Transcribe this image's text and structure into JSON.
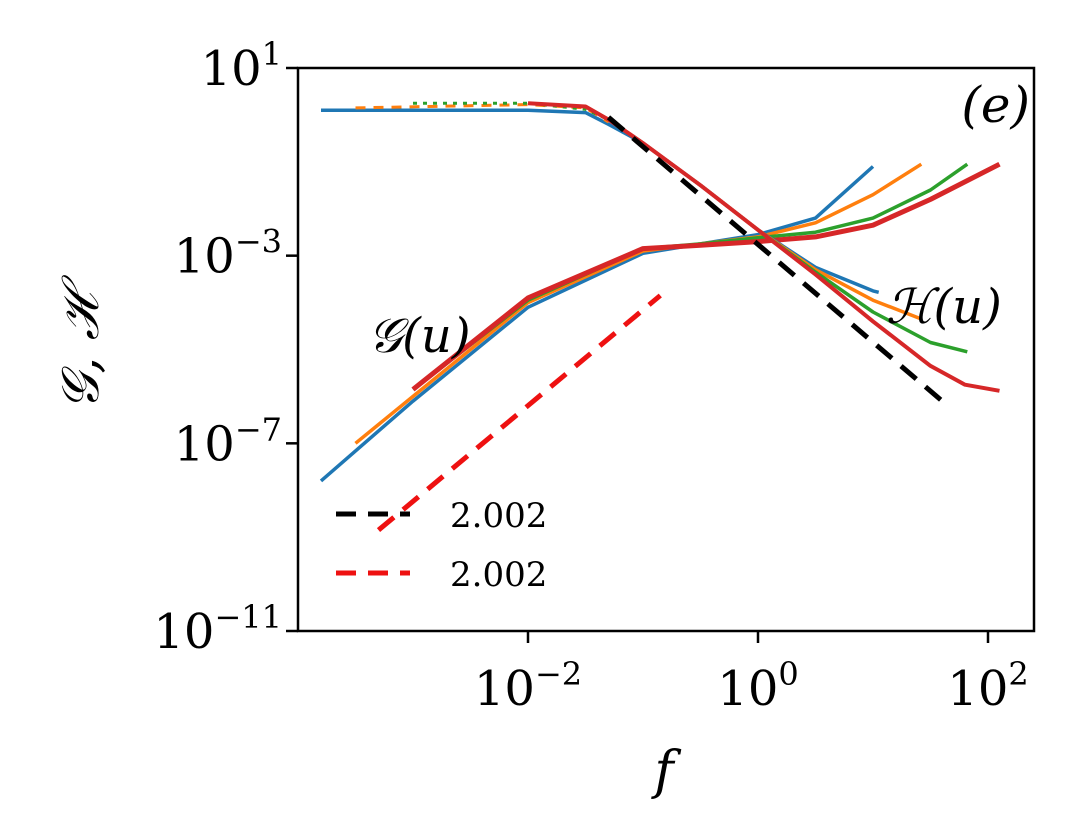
{
  "chart_data": {
    "type": "line",
    "panel_label": "(e)",
    "xlabel": "f",
    "ylabel": "𝒢, ℋ",
    "xscale": "log",
    "yscale": "log",
    "xlim_log10": [
      -4.0,
      2.4
    ],
    "ylim_log10": [
      -11,
      1
    ],
    "x_ticks": [
      {
        "base": "10",
        "exp": "−2",
        "log10": -2
      },
      {
        "base": "10",
        "exp": "0",
        "log10": 0
      },
      {
        "base": "10",
        "exp": "2",
        "log10": 2
      }
    ],
    "y_ticks": [
      {
        "base": "10",
        "exp": "1",
        "log10": 1
      },
      {
        "base": "10",
        "exp": "−3",
        "log10": -3
      },
      {
        "base": "10",
        "exp": "−7",
        "log10": -7
      },
      {
        "base": "10",
        "exp": "−11",
        "log10": -11
      }
    ],
    "annotations": {
      "g_label": "𝒢(u)",
      "h_label": "ℋ(u)"
    },
    "legend": {
      "position": "lower-left",
      "entries": [
        {
          "label": "2.002",
          "color": "#000000",
          "style": "dashed"
        },
        {
          "label": "2.002",
          "color": "#ee1111",
          "style": "dashed"
        }
      ]
    },
    "series": [
      {
        "name": "G blue",
        "color": "#1f77b4",
        "width": 3.5,
        "points": [
          [
            -3.8,
            -7.8
          ],
          [
            -3.0,
            -6.1
          ],
          [
            -2.0,
            -4.1
          ],
          [
            -1.0,
            -2.95
          ],
          [
            -0.5,
            -2.75
          ],
          [
            0.0,
            -2.55
          ],
          [
            0.5,
            -2.2
          ],
          [
            1.0,
            -1.1
          ]
        ]
      },
      {
        "name": "G orange",
        "color": "#ff7f0e",
        "width": 3.5,
        "points": [
          [
            -3.5,
            -7.0
          ],
          [
            -3.0,
            -6.0
          ],
          [
            -2.0,
            -4.0
          ],
          [
            -1.0,
            -2.9
          ],
          [
            -0.5,
            -2.75
          ],
          [
            0.0,
            -2.6
          ],
          [
            0.5,
            -2.3
          ],
          [
            1.0,
            -1.7
          ],
          [
            1.42,
            -1.05
          ]
        ]
      },
      {
        "name": "G green",
        "color": "#2ca02c",
        "width": 3.5,
        "points": [
          [
            -3.0,
            -5.85
          ],
          [
            -2.0,
            -3.95
          ],
          [
            -1.0,
            -2.85
          ],
          [
            -0.5,
            -2.75
          ],
          [
            0.0,
            -2.62
          ],
          [
            0.5,
            -2.5
          ],
          [
            1.0,
            -2.2
          ],
          [
            1.5,
            -1.6
          ],
          [
            1.82,
            -1.05
          ]
        ]
      },
      {
        "name": "G red",
        "color": "#d62728",
        "width": 5,
        "points": [
          [
            -3.0,
            -5.85
          ],
          [
            -2.0,
            -3.9
          ],
          [
            -1.0,
            -2.85
          ],
          [
            -0.5,
            -2.78
          ],
          [
            0.0,
            -2.7
          ],
          [
            0.5,
            -2.6
          ],
          [
            1.0,
            -2.35
          ],
          [
            1.5,
            -1.8
          ],
          [
            2.1,
            -1.05
          ]
        ]
      },
      {
        "name": "H blue",
        "color": "#1f77b4",
        "width": 3.5,
        "points": [
          [
            -3.8,
            0.1
          ],
          [
            -2.0,
            0.1
          ],
          [
            -1.5,
            0.05
          ],
          [
            -1.3,
            -0.2
          ],
          [
            -1.0,
            -0.6
          ],
          [
            -0.5,
            -1.5
          ],
          [
            0.0,
            -2.45
          ],
          [
            0.5,
            -3.25
          ],
          [
            1.0,
            -3.75
          ],
          [
            1.05,
            -3.78
          ]
        ]
      },
      {
        "name": "H orange dashed",
        "color": "#ff7f0e",
        "width": 3,
        "dash": "10,8",
        "points": [
          [
            -3.5,
            0.15
          ],
          [
            -2.0,
            0.22
          ],
          [
            -1.5,
            0.15
          ],
          [
            -1.3,
            -0.15
          ]
        ]
      },
      {
        "name": "H green dotted",
        "color": "#2ca02c",
        "width": 3,
        "dash": "4,6",
        "points": [
          [
            -3.0,
            0.25
          ],
          [
            -2.0,
            0.25
          ],
          [
            -1.5,
            0.12
          ],
          [
            -1.3,
            -0.1
          ]
        ]
      },
      {
        "name": "H orange",
        "color": "#ff7f0e",
        "width": 3.5,
        "points": [
          [
            -1.5,
            0.18
          ],
          [
            -1.3,
            -0.1
          ],
          [
            -1.0,
            -0.6
          ],
          [
            -0.5,
            -1.5
          ],
          [
            0.0,
            -2.45
          ],
          [
            0.5,
            -3.3
          ],
          [
            1.0,
            -3.95
          ],
          [
            1.42,
            -4.35
          ]
        ]
      },
      {
        "name": "H green",
        "color": "#2ca02c",
        "width": 3.5,
        "points": [
          [
            -1.5,
            0.18
          ],
          [
            -1.3,
            -0.1
          ],
          [
            -1.0,
            -0.6
          ],
          [
            -0.5,
            -1.5
          ],
          [
            0.0,
            -2.45
          ],
          [
            0.5,
            -3.35
          ],
          [
            1.0,
            -4.2
          ],
          [
            1.5,
            -4.85
          ],
          [
            1.82,
            -5.05
          ]
        ]
      },
      {
        "name": "H red",
        "color": "#d62728",
        "width": 4,
        "points": [
          [
            -2.0,
            0.25
          ],
          [
            -1.5,
            0.18
          ],
          [
            -1.3,
            -0.1
          ],
          [
            -1.0,
            -0.6
          ],
          [
            -0.5,
            -1.5
          ],
          [
            0.0,
            -2.45
          ],
          [
            0.5,
            -3.4
          ],
          [
            1.0,
            -4.4
          ],
          [
            1.5,
            -5.35
          ],
          [
            1.8,
            -5.75
          ],
          [
            2.1,
            -5.88
          ]
        ]
      },
      {
        "name": "fit black 2.002",
        "color": "#000000",
        "width": 5,
        "dash": "20,12",
        "points": [
          [
            -1.3,
            -0.05
          ],
          [
            1.65,
            -6.2
          ]
        ]
      },
      {
        "name": "fit red 2.002",
        "color": "#ee1111",
        "width": 5,
        "dash": "20,12",
        "points": [
          [
            -3.3,
            -8.85
          ],
          [
            -0.85,
            -3.85
          ]
        ]
      }
    ]
  }
}
